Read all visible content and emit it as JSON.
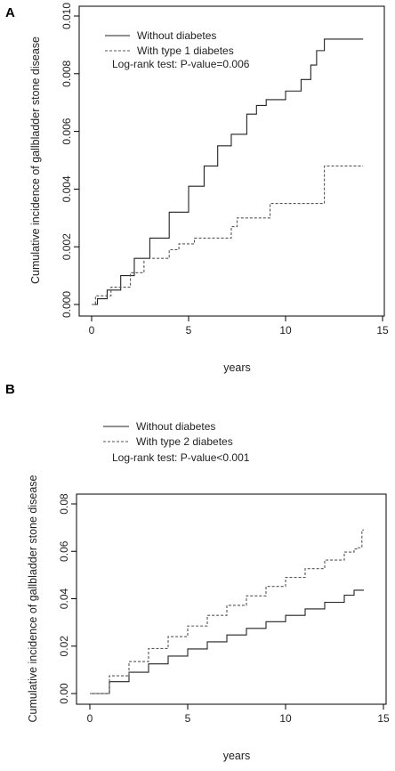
{
  "chart_data": [
    {
      "panel_label": "A",
      "type": "line",
      "xlabel": "years",
      "ylabel": "Cumulative incidence of gallbladder stone disease",
      "xlim": [
        0,
        15
      ],
      "ylim": [
        0,
        0.01
      ],
      "x_ticks": [
        "0",
        "5",
        "10",
        "15"
      ],
      "y_ticks": [
        "0.000",
        "0.002",
        "0.004",
        "0.006",
        "0.008",
        "0.010"
      ],
      "legend": {
        "position": "top-left",
        "entries": [
          "Without diabetes",
          "With type 1 diabetes"
        ]
      },
      "annotation": "Log-rank test: P-value=0.006",
      "series": [
        {
          "name": "Without diabetes",
          "style": "solid",
          "x": [
            0,
            0.3,
            0.8,
            1.5,
            2.2,
            3,
            4,
            5,
            5.8,
            6.5,
            7.2,
            8,
            8.5,
            9,
            10,
            10.8,
            11.3,
            11.6,
            12,
            14
          ],
          "y": [
            0,
            0.0002,
            0.0005,
            0.001,
            0.0016,
            0.0023,
            0.0032,
            0.0041,
            0.0048,
            0.0055,
            0.0059,
            0.0066,
            0.0069,
            0.0071,
            0.0074,
            0.0078,
            0.0083,
            0.0088,
            0.0092,
            0.0092
          ]
        },
        {
          "name": "With type 1 diabetes",
          "style": "dashed",
          "x": [
            0,
            0.2,
            1,
            2,
            2.7,
            4,
            4.5,
            5.3,
            7.2,
            7.5,
            9.2,
            11.9,
            12,
            14
          ],
          "y": [
            0,
            0.0003,
            0.0006,
            0.0011,
            0.0016,
            0.0019,
            0.0021,
            0.0023,
            0.0027,
            0.003,
            0.0035,
            0.0035,
            0.0048,
            0.0048
          ]
        }
      ]
    },
    {
      "panel_label": "B",
      "type": "line",
      "xlabel": "years",
      "ylabel": "Cumulative incidence of gallbladder stone disease",
      "xlim": [
        0,
        15
      ],
      "ylim": [
        0,
        0.08
      ],
      "x_ticks": [
        "0",
        "5",
        "10",
        "15"
      ],
      "y_ticks": [
        "0.00",
        "0.02",
        "0.04",
        "0.06",
        "0.08"
      ],
      "legend": {
        "position": "top-left",
        "entries": [
          "Without diabetes",
          "With type 2 diabetes"
        ]
      },
      "annotation": "Log-rank test: P-value<0.001",
      "series": [
        {
          "name": "Without diabetes",
          "style": "solid",
          "x": [
            0,
            1,
            2,
            3,
            4,
            5,
            6,
            7,
            8,
            9,
            10,
            11,
            12,
            13,
            13.5,
            14
          ],
          "y": [
            0,
            0.005,
            0.009,
            0.0125,
            0.0158,
            0.0188,
            0.0218,
            0.0247,
            0.0275,
            0.0303,
            0.033,
            0.0357,
            0.0385,
            0.0415,
            0.0436,
            0.0436
          ]
        },
        {
          "name": "With type 2 diabetes",
          "style": "dashed",
          "x": [
            0,
            1,
            2,
            3,
            4,
            5,
            6,
            7,
            8,
            9,
            10,
            11,
            12,
            13,
            13.5,
            13.7,
            13.9,
            14
          ],
          "y": [
            0,
            0.0075,
            0.0135,
            0.019,
            0.024,
            0.0285,
            0.033,
            0.0372,
            0.0412,
            0.0452,
            0.049,
            0.0527,
            0.0563,
            0.0597,
            0.061,
            0.0615,
            0.069,
            0.069
          ]
        }
      ]
    }
  ]
}
